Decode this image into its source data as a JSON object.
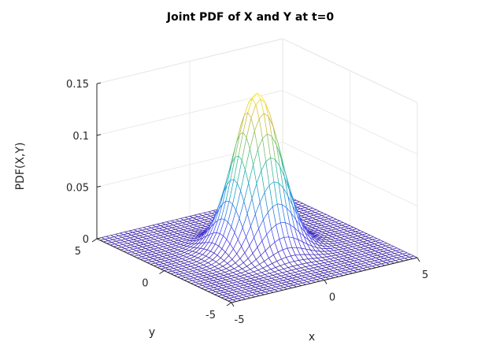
{
  "chart_data": {
    "type": "surface",
    "title": "Joint PDF of X and Y at t=0",
    "xlabel": "x",
    "ylabel": "y",
    "zlabel": "PDF(X,Y)",
    "xlim": [
      -5,
      5
    ],
    "ylim": [
      -5,
      5
    ],
    "zlim": [
      0,
      0.15
    ],
    "xticks": [
      {
        "value": -5,
        "label": "-5"
      },
      {
        "value": 0,
        "label": "0"
      },
      {
        "value": 5,
        "label": "5"
      }
    ],
    "yticks": [
      {
        "value": 5,
        "label": "5"
      },
      {
        "value": 0,
        "label": "0"
      },
      {
        "value": -5,
        "label": "-5"
      }
    ],
    "zticks": [
      {
        "value": 0,
        "label": "0"
      },
      {
        "value": 0.05,
        "label": "0.05"
      },
      {
        "value": 0.1,
        "label": "0.1"
      },
      {
        "value": 0.15,
        "label": "0.15"
      }
    ],
    "surface": {
      "function": "bivariate-normal",
      "mean_x": 0,
      "mean_y": 0,
      "std_x": 1.03,
      "std_y": 1.03,
      "peak": 0.15,
      "grid_points": 41,
      "style": "mesh",
      "colormap": "parula"
    },
    "grid": true,
    "box": true
  },
  "colors": {
    "axis": "#262626",
    "grid": "#e6e6e6",
    "box": "#d9d9d9",
    "colormap": [
      "#3e26a8",
      "#4743f8",
      "#2c7fe5",
      "#1ba9c6",
      "#45bf8c",
      "#97c156",
      "#e3b832",
      "#f9fb15"
    ]
  }
}
